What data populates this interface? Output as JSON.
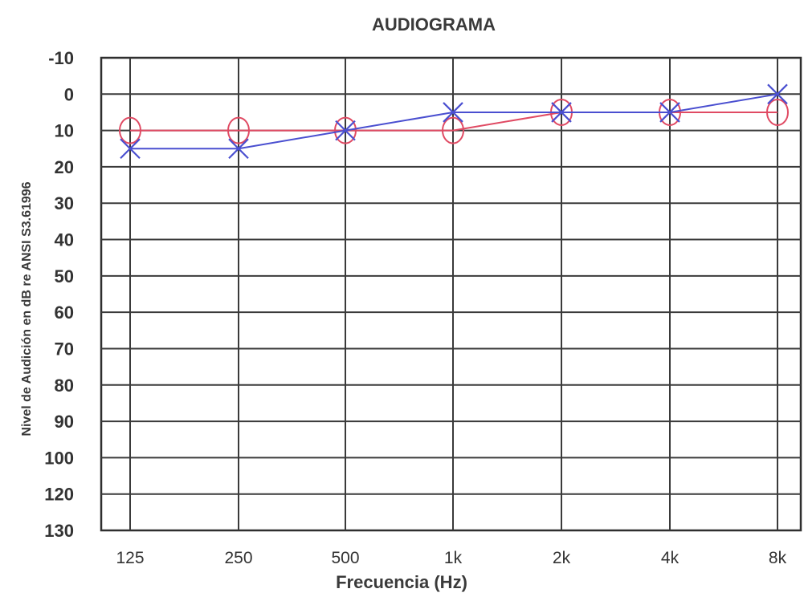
{
  "chart_data": {
    "type": "line",
    "title": "AUDIOGRAMA",
    "xlabel": "Frecuencia (Hz)",
    "ylabel": "Nivel de Audición en dB re ANSI S3.61996",
    "categories": [
      "125",
      "250",
      "500",
      "1k",
      "2k",
      "4k",
      "8k"
    ],
    "y_ticks": [
      "-10",
      "0",
      "10",
      "20",
      "30",
      "40",
      "50",
      "60",
      "70",
      "80",
      "90",
      "100",
      "120",
      "130"
    ],
    "ylim": [
      -10,
      130
    ],
    "y_inverted": true,
    "grid": true,
    "series": [
      {
        "marker": "circle",
        "color": "#e04a63",
        "values": [
          10,
          10,
          10,
          10,
          5,
          5,
          5
        ]
      },
      {
        "marker": "x",
        "color": "#4a4fd0",
        "values": [
          15,
          15,
          10,
          5,
          5,
          5,
          0
        ]
      }
    ]
  }
}
